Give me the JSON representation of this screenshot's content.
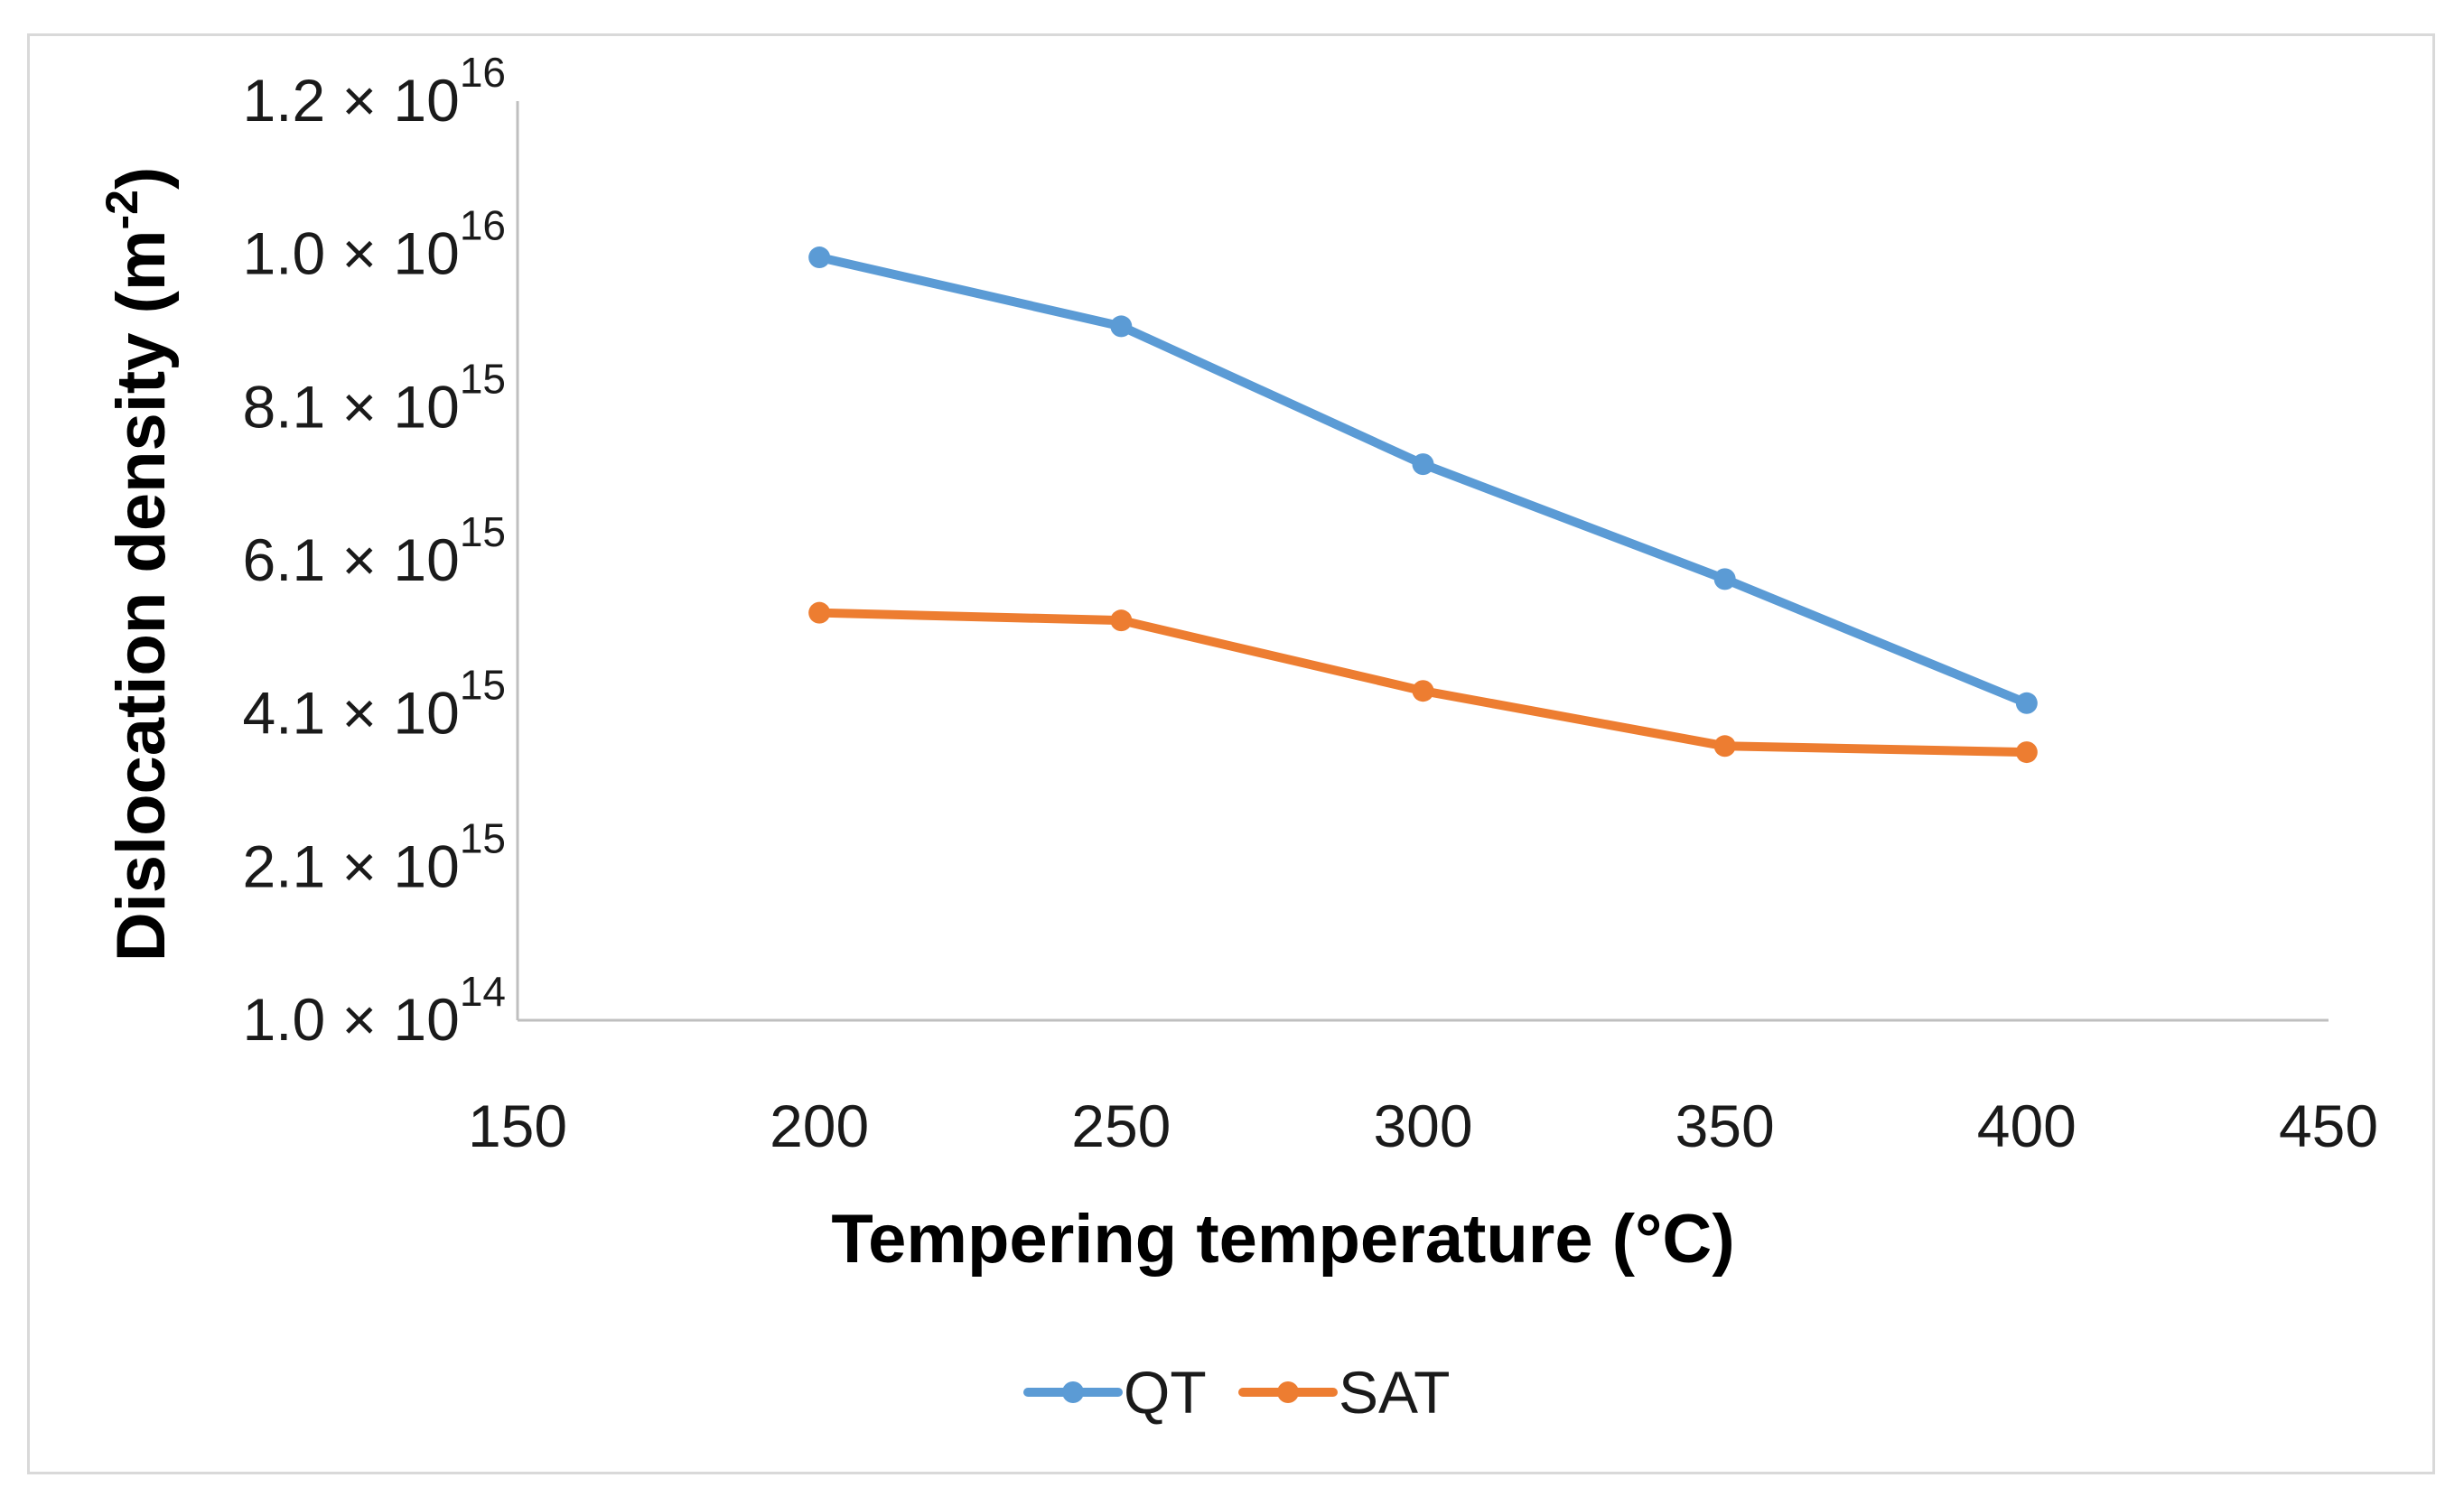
{
  "chart_data": {
    "type": "line",
    "title": "",
    "xlabel": "Tempering temperature (°C)",
    "ylabel": {
      "main": "Dislocation density (m",
      "sup": "-2",
      "close": ")"
    },
    "x": [
      200,
      250,
      300,
      350,
      400
    ],
    "xlim": [
      150,
      450
    ],
    "x_ticks": [
      "150",
      "200",
      "250",
      "300",
      "350",
      "400",
      "450"
    ],
    "y_ticks": [
      {
        "mantissa": "1.0",
        "times": " × 10",
        "exp": "14"
      },
      {
        "mantissa": "2.1",
        "times": " × 10",
        "exp": "15"
      },
      {
        "mantissa": "4.1",
        "times": " × 10",
        "exp": "15"
      },
      {
        "mantissa": "6.1",
        "times": " × 10",
        "exp": "15"
      },
      {
        "mantissa": "8.1",
        "times": " × 10",
        "exp": "15"
      },
      {
        "mantissa": "1.0",
        "times": " × 10",
        "exp": "16"
      },
      {
        "mantissa": "1.2",
        "times": " × 10",
        "exp": "16"
      }
    ],
    "y_tick_index_range": [
      0,
      6
    ],
    "y_value_note": "series values expressed in units of the evenly spaced tick index (0 = 1.0×10^14 ... 6 = 1.2×10^16)",
    "series": [
      {
        "name": "QT",
        "color": "#5B9BD5",
        "values_tick_units": [
          4.98,
          4.53,
          3.63,
          2.88,
          2.07
        ]
      },
      {
        "name": "SAT",
        "color": "#ED7D31",
        "values_tick_units": [
          2.66,
          2.61,
          2.15,
          1.79,
          1.75
        ]
      }
    ],
    "legend_position": "bottom-center",
    "grid": false
  }
}
